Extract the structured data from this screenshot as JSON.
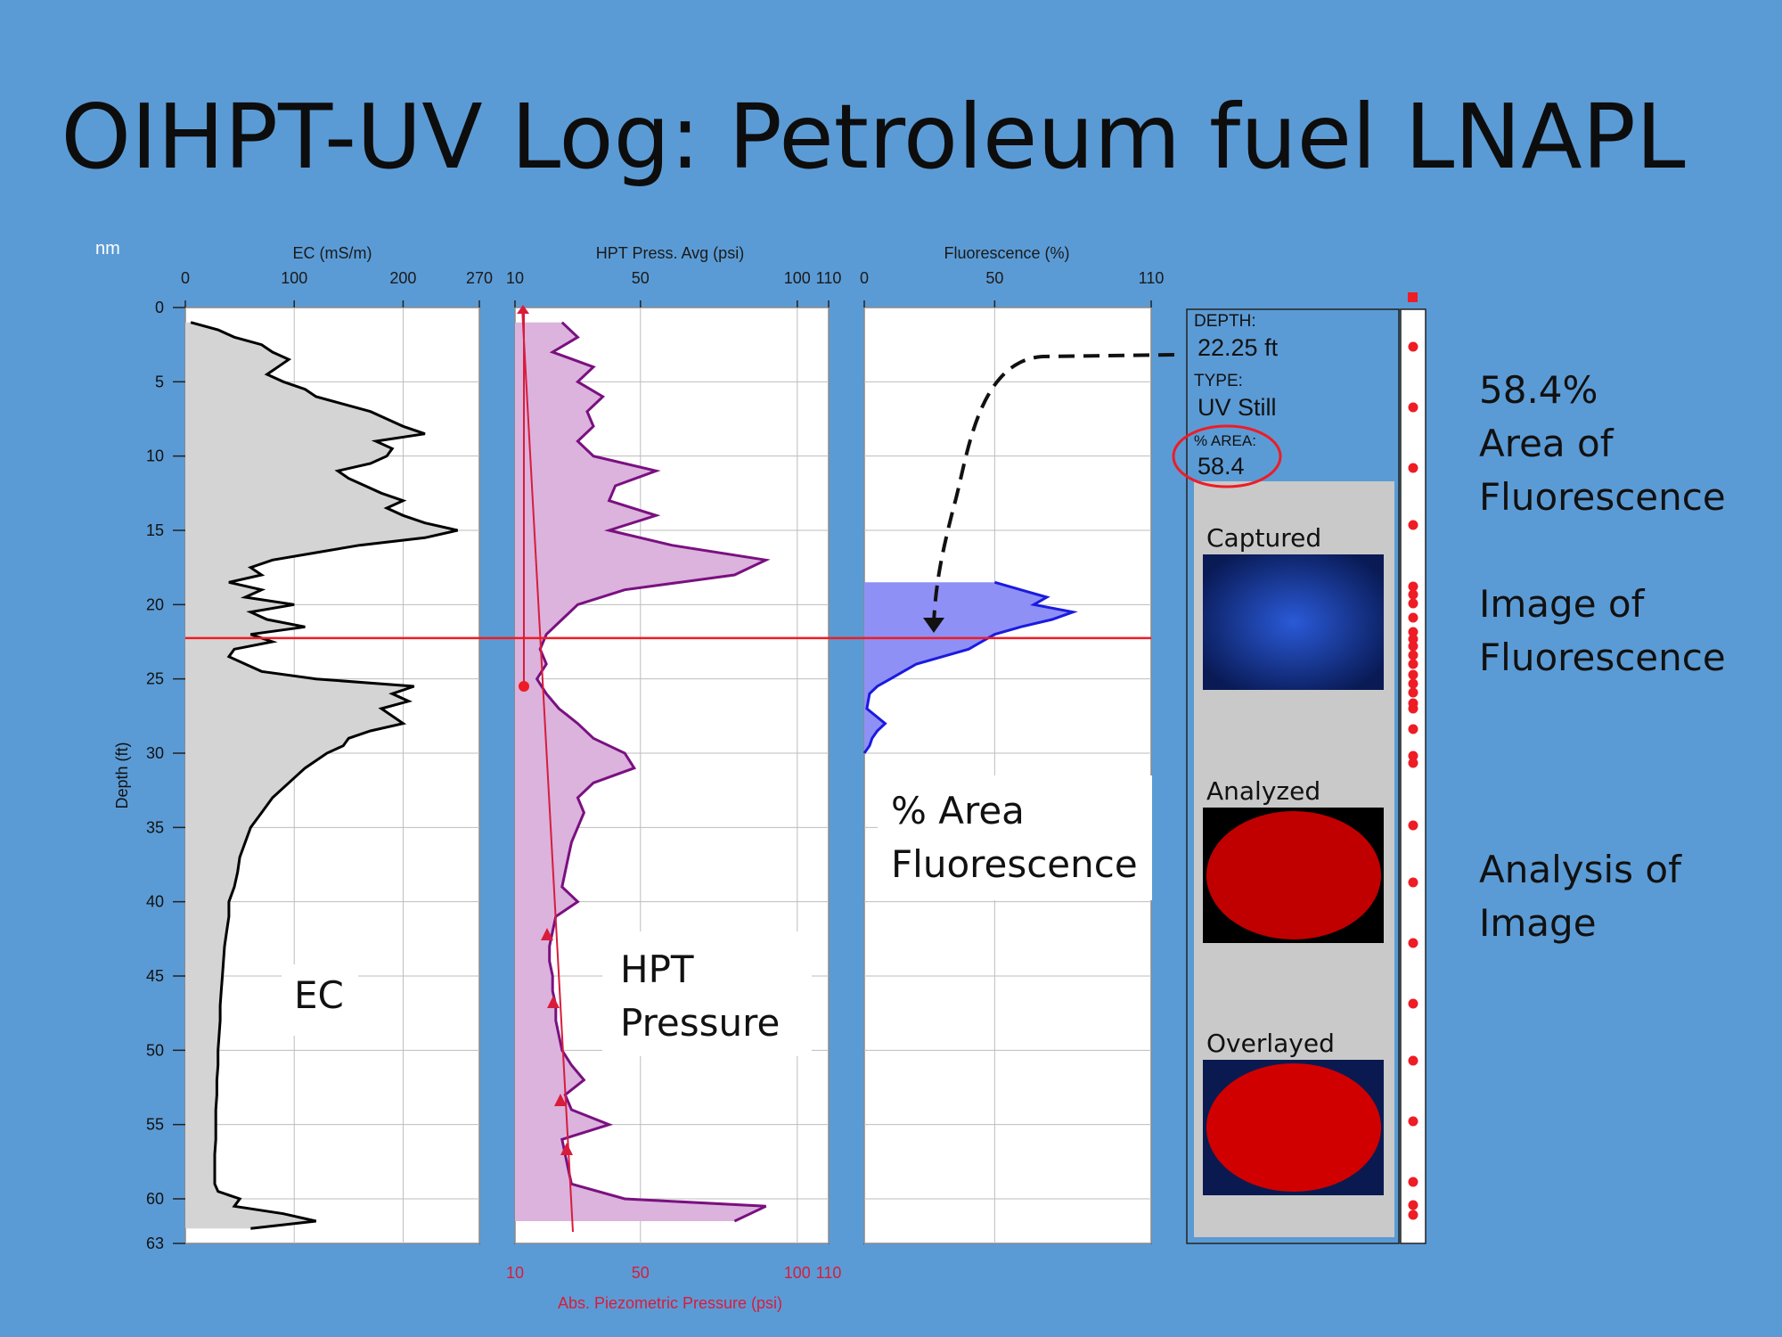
{
  "title": "OIHPT-UV Log: Petroleum fuel LNAPL",
  "corner_mark": "nm",
  "y_axis": {
    "label": "Depth (ft)",
    "ticks": [
      0,
      5,
      10,
      15,
      20,
      25,
      30,
      35,
      40,
      45,
      50,
      55,
      60,
      63
    ],
    "range": [
      0,
      63
    ]
  },
  "selected_depth": 22.25,
  "panels": {
    "ec": {
      "label": "EC (mS/m)",
      "ticks": [
        0,
        100,
        200,
        270
      ],
      "range": [
        0,
        270
      ],
      "overlay": "EC"
    },
    "hpt": {
      "label": "HPT Press. Avg (psi)",
      "ticks": [
        10,
        50,
        100,
        110
      ],
      "range": [
        10,
        110
      ],
      "overlay_line1": "HPT",
      "overlay_line2": "Pressure",
      "bottom_label": "Abs. Piezometric Pressure (psi)",
      "bottom_ticks": [
        10,
        50,
        100,
        110
      ]
    },
    "fl": {
      "label": "Fluorescence (%)",
      "ticks": [
        0,
        50,
        110
      ],
      "range": [
        0,
        110
      ],
      "overlay_line1": "% Area",
      "overlay_line2": "Fluorescence"
    }
  },
  "info": {
    "depth_label": "DEPTH:",
    "depth_value": "22.25 ft",
    "type_label": "TYPE:",
    "type_value": "UV Still",
    "area_label": "% AREA:",
    "area_value": "58.4",
    "captured": "Captured",
    "analyzed": "Analyzed",
    "overlayed": "Overlayed"
  },
  "right_labels": {
    "l1": "58.4%",
    "l2": "Area of",
    "l3": "Fluorescence",
    "l4": "Image of",
    "l5": "Fluorescence",
    "l6": "Analysis of",
    "l7": "Image"
  },
  "colors": {
    "background": "#5b9bd5",
    "ec_fill": "#d4d4d4",
    "hpt_fill": "#dbb3dd",
    "hpt_line": "#7a1080",
    "fl_fill": "#8f90f5",
    "fl_line": "#1a1ae0",
    "depth_line": "#ee1c25",
    "piezo": "#d81c3c"
  },
  "chart_data": {
    "type": "line",
    "y_label": "Depth (ft)",
    "ylim": [
      0,
      63
    ],
    "series": [
      {
        "name": "EC (mS/m)",
        "xlim": [
          0,
          270
        ],
        "depth": [
          1,
          1.5,
          2,
          2.5,
          3,
          3.5,
          4,
          4.5,
          5,
          5.5,
          6,
          6.5,
          7,
          7.5,
          8,
          8.5,
          9,
          9.5,
          10,
          10.5,
          11,
          11.5,
          12,
          12.5,
          13,
          13.5,
          14,
          14.5,
          15,
          15.5,
          16,
          16.5,
          17,
          17.5,
          18,
          18.5,
          19,
          19.5,
          20,
          20.5,
          21,
          21.5,
          22,
          22.5,
          23,
          23.5,
          24,
          24.5,
          25,
          25.5,
          26,
          26.5,
          27,
          27.5,
          28,
          28.5,
          29,
          29.5,
          30,
          31,
          32,
          33,
          34,
          35,
          36,
          37,
          38,
          39,
          40,
          41,
          42,
          43,
          44,
          45,
          46,
          47,
          48,
          49,
          50,
          51,
          52,
          53,
          54,
          55,
          56,
          57,
          58,
          59,
          59.5,
          60,
          60.5,
          61,
          61.5,
          62
        ],
        "ec": [
          5,
          30,
          45,
          70,
          80,
          95,
          85,
          75,
          90,
          110,
          120,
          145,
          170,
          185,
          200,
          220,
          175,
          190,
          185,
          170,
          140,
          150,
          165,
          180,
          200,
          185,
          200,
          220,
          250,
          220,
          160,
          120,
          80,
          60,
          70,
          40,
          70,
          55,
          100,
          60,
          75,
          110,
          60,
          80,
          45,
          40,
          55,
          70,
          120,
          210,
          190,
          205,
          180,
          190,
          200,
          170,
          150,
          145,
          130,
          110,
          95,
          80,
          70,
          60,
          55,
          50,
          48,
          45,
          40,
          40,
          38,
          36,
          35,
          34,
          33,
          32,
          32,
          31,
          30,
          30,
          29,
          29,
          28,
          28,
          28,
          27,
          27,
          27,
          30,
          50,
          45,
          90,
          120,
          60
        ]
      },
      {
        "name": "HPT Press. Avg (psi)",
        "xlim": [
          10,
          110
        ],
        "depth": [
          1,
          2,
          3,
          4,
          5,
          6,
          7,
          8,
          9,
          10,
          11,
          12,
          13,
          14,
          15,
          16,
          17,
          18,
          19,
          20,
          21,
          22,
          23,
          24,
          25,
          26,
          27,
          28,
          29,
          30,
          31,
          32,
          33,
          34,
          35,
          36,
          37,
          38,
          39,
          40,
          41,
          42,
          43,
          44,
          45,
          46,
          47,
          48,
          49,
          50,
          51,
          52,
          53,
          54,
          55,
          56,
          57,
          58,
          59,
          60,
          60.5,
          61,
          61.5
        ],
        "hpt": [
          25,
          30,
          22,
          35,
          30,
          38,
          33,
          35,
          30,
          35,
          55,
          42,
          40,
          55,
          40,
          60,
          90,
          80,
          45,
          30,
          25,
          20,
          18,
          20,
          17,
          20,
          24,
          30,
          35,
          45,
          48,
          35,
          30,
          32,
          30,
          28,
          27,
          26,
          25,
          30,
          23,
          22,
          21,
          21,
          22,
          22,
          23,
          23,
          24,
          25,
          28,
          32,
          26,
          28,
          40,
          25,
          26,
          27,
          28,
          45,
          90,
          85,
          80
        ]
      },
      {
        "name": "Fluorescence (%)",
        "xlim": [
          0,
          110
        ],
        "depth": [
          18.5,
          19,
          19.5,
          20,
          20.5,
          21,
          21.5,
          22,
          22.5,
          23,
          23.5,
          24,
          24.5,
          25,
          25.5,
          26,
          27,
          28,
          28.5,
          29,
          29.5,
          30
        ],
        "fl": [
          50,
          60,
          70,
          65,
          80,
          72,
          60,
          50,
          45,
          40,
          30,
          20,
          15,
          10,
          5,
          2,
          1,
          8,
          5,
          3,
          2,
          0
        ]
      }
    ]
  }
}
